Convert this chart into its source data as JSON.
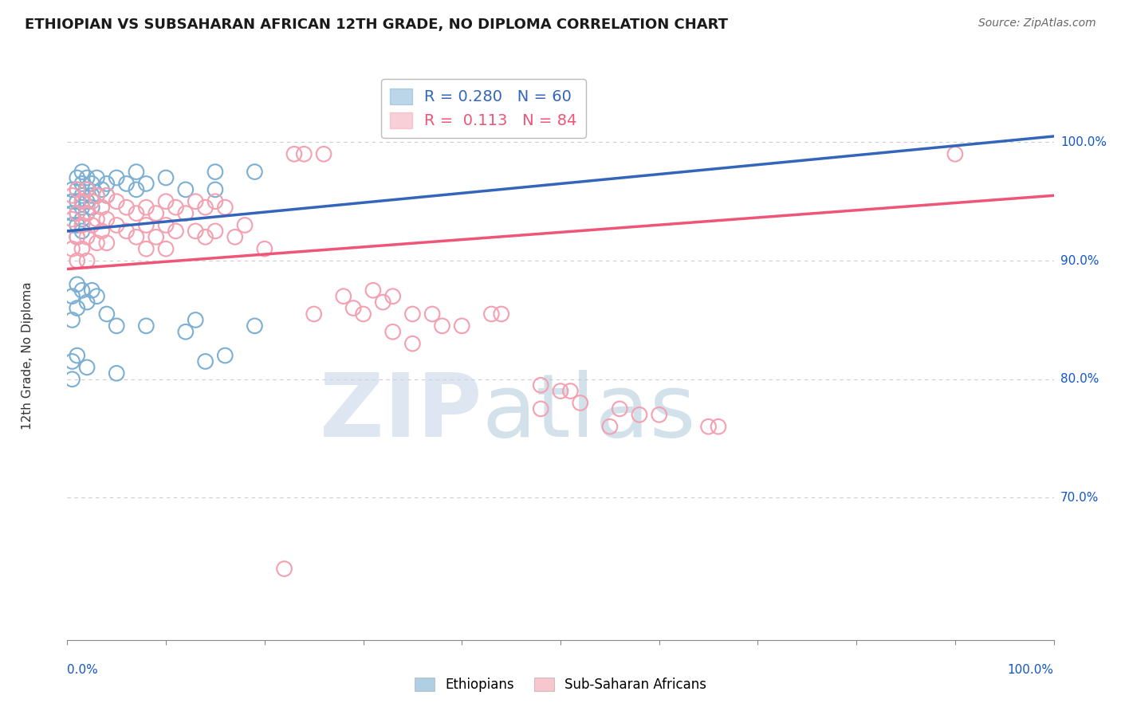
{
  "title": "ETHIOPIAN VS SUBSAHARAN AFRICAN 12TH GRADE, NO DIPLOMA CORRELATION CHART",
  "source": "Source: ZipAtlas.com",
  "ylabel": "12th Grade, No Diploma",
  "legend_ethiopians": "Ethiopians",
  "legend_subsaharan": "Sub-Saharan Africans",
  "R_ethiopians": 0.28,
  "N_ethiopians": 60,
  "R_subsaharan": 0.113,
  "N_subsaharan": 84,
  "blue_color": "#7BAFD4",
  "pink_color": "#F4A0B0",
  "blue_line_color": "#3366BB",
  "pink_line_color": "#EE5577",
  "axis_label_color": "#1155CC",
  "gridline_color": "#CCCCCC",
  "ytick_values": [
    0.7,
    0.8,
    0.9,
    1.0
  ],
  "ytick_labels": [
    "70.0%",
    "80.0%",
    "90.0%",
    "100.0%"
  ],
  "xlim": [
    0.0,
    1.0
  ],
  "ylim": [
    0.58,
    1.06
  ],
  "blue_line": [
    [
      0.0,
      0.925
    ],
    [
      1.0,
      1.005
    ]
  ],
  "pink_line": [
    [
      0.0,
      0.893
    ],
    [
      1.0,
      0.955
    ]
  ],
  "blue_points": [
    [
      0.005,
      0.96
    ],
    [
      0.005,
      0.95
    ],
    [
      0.005,
      0.94
    ],
    [
      0.005,
      0.93
    ],
    [
      0.01,
      0.97
    ],
    [
      0.01,
      0.96
    ],
    [
      0.01,
      0.95
    ],
    [
      0.01,
      0.94
    ],
    [
      0.01,
      0.93
    ],
    [
      0.01,
      0.92
    ],
    [
      0.015,
      0.975
    ],
    [
      0.015,
      0.965
    ],
    [
      0.015,
      0.955
    ],
    [
      0.015,
      0.945
    ],
    [
      0.015,
      0.935
    ],
    [
      0.015,
      0.925
    ],
    [
      0.02,
      0.97
    ],
    [
      0.02,
      0.96
    ],
    [
      0.02,
      0.95
    ],
    [
      0.02,
      0.94
    ],
    [
      0.025,
      0.965
    ],
    [
      0.025,
      0.955
    ],
    [
      0.025,
      0.945
    ],
    [
      0.03,
      0.97
    ],
    [
      0.03,
      0.955
    ],
    [
      0.035,
      0.96
    ],
    [
      0.04,
      0.965
    ],
    [
      0.04,
      0.955
    ],
    [
      0.05,
      0.97
    ],
    [
      0.06,
      0.965
    ],
    [
      0.07,
      0.975
    ],
    [
      0.07,
      0.96
    ],
    [
      0.08,
      0.965
    ],
    [
      0.1,
      0.97
    ],
    [
      0.12,
      0.96
    ],
    [
      0.15,
      0.975
    ],
    [
      0.15,
      0.96
    ],
    [
      0.19,
      0.975
    ],
    [
      0.005,
      0.87
    ],
    [
      0.005,
      0.85
    ],
    [
      0.01,
      0.88
    ],
    [
      0.01,
      0.86
    ],
    [
      0.015,
      0.875
    ],
    [
      0.02,
      0.865
    ],
    [
      0.025,
      0.875
    ],
    [
      0.03,
      0.87
    ],
    [
      0.04,
      0.855
    ],
    [
      0.05,
      0.845
    ],
    [
      0.08,
      0.845
    ],
    [
      0.12,
      0.84
    ],
    [
      0.13,
      0.85
    ],
    [
      0.19,
      0.845
    ],
    [
      0.005,
      0.815
    ],
    [
      0.005,
      0.8
    ],
    [
      0.01,
      0.82
    ],
    [
      0.02,
      0.81
    ],
    [
      0.05,
      0.805
    ],
    [
      0.14,
      0.815
    ],
    [
      0.16,
      0.82
    ]
  ],
  "pink_points": [
    [
      0.005,
      0.955
    ],
    [
      0.005,
      0.935
    ],
    [
      0.005,
      0.91
    ],
    [
      0.01,
      0.96
    ],
    [
      0.01,
      0.94
    ],
    [
      0.01,
      0.92
    ],
    [
      0.01,
      0.9
    ],
    [
      0.015,
      0.95
    ],
    [
      0.015,
      0.93
    ],
    [
      0.015,
      0.91
    ],
    [
      0.02,
      0.96
    ],
    [
      0.02,
      0.94
    ],
    [
      0.02,
      0.92
    ],
    [
      0.02,
      0.9
    ],
    [
      0.025,
      0.95
    ],
    [
      0.025,
      0.93
    ],
    [
      0.03,
      0.955
    ],
    [
      0.03,
      0.935
    ],
    [
      0.03,
      0.915
    ],
    [
      0.035,
      0.945
    ],
    [
      0.035,
      0.925
    ],
    [
      0.04,
      0.955
    ],
    [
      0.04,
      0.935
    ],
    [
      0.04,
      0.915
    ],
    [
      0.05,
      0.95
    ],
    [
      0.05,
      0.93
    ],
    [
      0.06,
      0.945
    ],
    [
      0.06,
      0.925
    ],
    [
      0.07,
      0.94
    ],
    [
      0.07,
      0.92
    ],
    [
      0.08,
      0.945
    ],
    [
      0.08,
      0.93
    ],
    [
      0.08,
      0.91
    ],
    [
      0.09,
      0.94
    ],
    [
      0.09,
      0.92
    ],
    [
      0.1,
      0.95
    ],
    [
      0.1,
      0.93
    ],
    [
      0.1,
      0.91
    ],
    [
      0.11,
      0.945
    ],
    [
      0.11,
      0.925
    ],
    [
      0.12,
      0.94
    ],
    [
      0.13,
      0.95
    ],
    [
      0.13,
      0.925
    ],
    [
      0.14,
      0.945
    ],
    [
      0.14,
      0.92
    ],
    [
      0.15,
      0.95
    ],
    [
      0.15,
      0.925
    ],
    [
      0.16,
      0.945
    ],
    [
      0.17,
      0.92
    ],
    [
      0.18,
      0.93
    ],
    [
      0.2,
      0.91
    ],
    [
      0.23,
      0.99
    ],
    [
      0.24,
      0.99
    ],
    [
      0.26,
      0.99
    ],
    [
      0.25,
      0.855
    ],
    [
      0.28,
      0.87
    ],
    [
      0.29,
      0.86
    ],
    [
      0.3,
      0.855
    ],
    [
      0.31,
      0.875
    ],
    [
      0.32,
      0.865
    ],
    [
      0.33,
      0.87
    ],
    [
      0.33,
      0.84
    ],
    [
      0.35,
      0.855
    ],
    [
      0.35,
      0.83
    ],
    [
      0.37,
      0.855
    ],
    [
      0.38,
      0.845
    ],
    [
      0.4,
      0.845
    ],
    [
      0.43,
      0.855
    ],
    [
      0.44,
      0.855
    ],
    [
      0.48,
      0.795
    ],
    [
      0.48,
      0.775
    ],
    [
      0.5,
      0.79
    ],
    [
      0.51,
      0.79
    ],
    [
      0.52,
      0.78
    ],
    [
      0.55,
      0.76
    ],
    [
      0.56,
      0.775
    ],
    [
      0.58,
      0.77
    ],
    [
      0.6,
      0.77
    ],
    [
      0.65,
      0.76
    ],
    [
      0.66,
      0.76
    ],
    [
      0.9,
      0.99
    ],
    [
      0.22,
      0.64
    ]
  ]
}
